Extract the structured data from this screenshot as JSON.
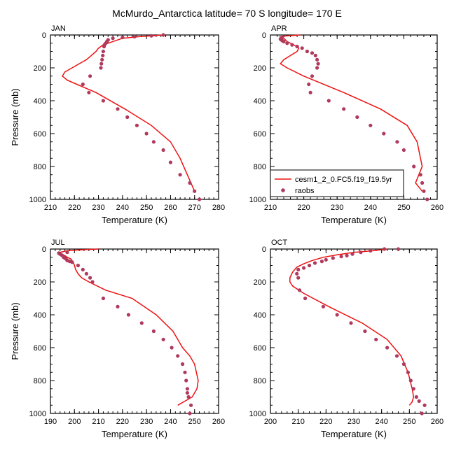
{
  "title": "McMurdo_Antarctica  latitude= 70 S longitude= 170 E",
  "colors": {
    "model": "#ee1111",
    "obs": "#b03a5e"
  },
  "legend": {
    "model_label": "cesm1_2_0.FC5.f19_f19.5yr",
    "obs_label": "raobs"
  },
  "chart_data": [
    {
      "type": "scatter",
      "panel": "JAN",
      "xlabel": "Temperature (K)",
      "ylabel": "Pressure (mb)",
      "xlim": [
        210,
        280
      ],
      "ylim": [
        1000,
        0
      ],
      "xticks": [
        210,
        220,
        230,
        240,
        250,
        260,
        270,
        280
      ],
      "yticks": [
        0,
        200,
        400,
        600,
        800,
        1000
      ],
      "model": {
        "x": [
          257,
          247,
          240,
          236,
          232,
          230,
          229,
          227,
          225,
          222,
          219,
          216,
          215,
          217,
          221,
          229,
          241,
          252,
          260,
          264,
          267,
          270
        ],
        "y": [
          0,
          10,
          20,
          40,
          60,
          80,
          100,
          125,
          150,
          175,
          200,
          225,
          250,
          275,
          300,
          350,
          450,
          550,
          650,
          750,
          850,
          950
        ]
      },
      "obs": {
        "x": [
          257,
          252,
          245,
          240,
          236,
          234,
          233.5,
          233,
          232.5,
          232.3,
          232,
          231.8,
          231.5,
          231.2,
          231,
          226.5,
          223.5,
          226,
          232,
          238,
          242,
          246,
          250,
          253,
          257,
          260,
          264,
          268,
          270,
          272
        ],
        "y": [
          0,
          5,
          10,
          15,
          20,
          30,
          40,
          50,
          60,
          70,
          100,
          125,
          150,
          175,
          200,
          250,
          300,
          350,
          400,
          450,
          500,
          550,
          600,
          650,
          700,
          775,
          850,
          900,
          950,
          1000
        ]
      }
    },
    {
      "type": "scatter",
      "panel": "APR",
      "xlabel": "Temperature (K)",
      "ylabel": "",
      "xlim": [
        210,
        260
      ],
      "ylim": [
        1000,
        0
      ],
      "xticks": [
        210,
        220,
        230,
        240,
        250,
        260
      ],
      "yticks": [
        0,
        200,
        400,
        600,
        800,
        1000
      ],
      "model": {
        "x": [
          219,
          215,
          213,
          214,
          215,
          217,
          218.5,
          218,
          216,
          214,
          213,
          215,
          220,
          232,
          243,
          251,
          254,
          255,
          255.5,
          254.5,
          253.5,
          255.5
        ],
        "y": [
          0,
          5,
          10,
          20,
          40,
          60,
          80,
          100,
          125,
          150,
          175,
          200,
          250,
          350,
          450,
          550,
          650,
          750,
          800,
          850,
          900,
          950
        ]
      },
      "obs": {
        "x": [
          213.5,
          213.2,
          213,
          213.3,
          213.6,
          214,
          215,
          216.5,
          218,
          219.5,
          221,
          222.5,
          223.5,
          224,
          224.3,
          224,
          222.5,
          221.5,
          222,
          227.5,
          232,
          236,
          240,
          244,
          248,
          250,
          253,
          255,
          255.5,
          256,
          257
        ],
        "y": [
          15,
          20,
          25,
          30,
          35,
          40,
          50,
          60,
          70,
          80,
          100,
          110,
          125,
          150,
          175,
          200,
          250,
          300,
          350,
          400,
          450,
          500,
          550,
          600,
          650,
          700,
          800,
          850,
          900,
          950,
          1000
        ]
      }
    },
    {
      "type": "scatter",
      "panel": "JUL",
      "xlabel": "Temperature (K)",
      "ylabel": "Pressure (mb)",
      "xlim": [
        190,
        260
      ],
      "ylim": [
        1000,
        0
      ],
      "xticks": [
        190,
        200,
        210,
        220,
        230,
        240,
        250,
        260
      ],
      "yticks": [
        0,
        200,
        400,
        600,
        800,
        1000
      ],
      "model": {
        "x": [
          210,
          202,
          197,
          194,
          194.5,
          196,
          197,
          198.5,
          199.5,
          200,
          200.5,
          201.5,
          203,
          206,
          213,
          224,
          234,
          241,
          245,
          248,
          250,
          251.5,
          251,
          249,
          246,
          243
        ],
        "y": [
          0,
          5,
          10,
          20,
          30,
          40,
          50,
          60,
          80,
          100,
          125,
          150,
          175,
          200,
          250,
          300,
          400,
          500,
          600,
          650,
          700,
          800,
          850,
          900,
          925,
          950
        ]
      },
      "obs": {
        "x": [
          197,
          193.5,
          194,
          194.5,
          195,
          195.5,
          196,
          196.5,
          197,
          198,
          199,
          201.5,
          203.5,
          205,
          206.5,
          207.5,
          212,
          218,
          222.5,
          228,
          233,
          237,
          240.5,
          243,
          245,
          246,
          246.5,
          247,
          247,
          247.5,
          248.5,
          248
        ],
        "y": [
          20,
          25,
          30,
          35,
          40,
          50,
          55,
          60,
          70,
          75,
          80,
          100,
          125,
          150,
          175,
          200,
          300,
          350,
          400,
          450,
          500,
          550,
          600,
          650,
          700,
          750,
          800,
          850,
          875,
          900,
          950,
          1000
        ]
      }
    },
    {
      "type": "scatter",
      "panel": "OCT",
      "xlabel": "Temperature (K)",
      "ylabel": "",
      "xlim": [
        200,
        260
      ],
      "ylim": [
        1000,
        0
      ],
      "xticks": [
        200,
        210,
        220,
        230,
        240,
        250,
        260
      ],
      "yticks": [
        0,
        200,
        400,
        600,
        800,
        1000
      ],
      "model": {
        "x": [
          242,
          237,
          230,
          224,
          219,
          215,
          212,
          209.5,
          208,
          207,
          207,
          208,
          212,
          221,
          233,
          242,
          247,
          249.5,
          251,
          251.5,
          251,
          250
        ],
        "y": [
          0,
          10,
          20,
          35,
          50,
          70,
          90,
          110,
          140,
          175,
          200,
          225,
          270,
          350,
          450,
          550,
          650,
          750,
          850,
          900,
          930,
          950
        ]
      },
      "obs": {
        "x": [
          246,
          241,
          236,
          232.5,
          229.5,
          227.5,
          225.5,
          222.5,
          220,
          218.5,
          216,
          214,
          212,
          210,
          209.5,
          210,
          210.5,
          212.5,
          219,
          224,
          229,
          234,
          238,
          242,
          245.5,
          248,
          249.5,
          250.5,
          251.5,
          252.5,
          253.5,
          255.5,
          254.5
        ],
        "y": [
          0,
          0,
          10,
          20,
          30,
          40,
          45,
          55,
          65,
          75,
          85,
          100,
          115,
          125,
          150,
          175,
          250,
          300,
          350,
          400,
          450,
          500,
          550,
          600,
          650,
          700,
          750,
          800,
          850,
          900,
          925,
          950,
          1000
        ]
      }
    }
  ]
}
